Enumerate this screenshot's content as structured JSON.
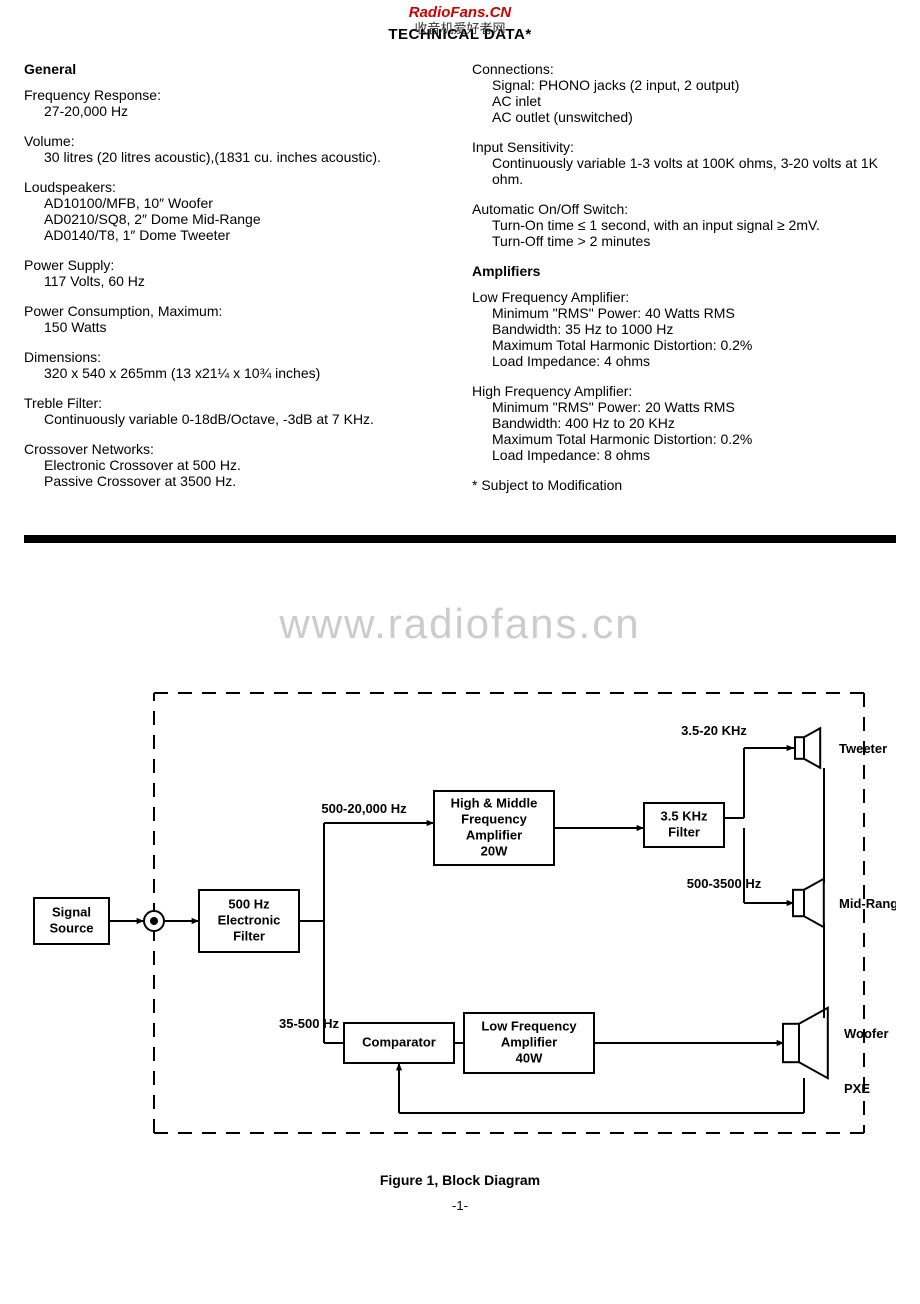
{
  "watermark_top": "RadioFans.CN",
  "title": "TECHNICAL DATA*",
  "title_overlay": "收音机爱好者网",
  "left": {
    "heading": "General",
    "specs": [
      {
        "label": "Frequency Response:",
        "lines": [
          "27-20,000 Hz"
        ]
      },
      {
        "label": "Volume:",
        "lines": [
          "30 litres (20 litres acoustic),(1831 cu. inches acoustic)."
        ]
      },
      {
        "label": "Loudspeakers:",
        "lines": [
          "AD10100/MFB, 10″ Woofer",
          "AD0210/SQ8, 2″ Dome Mid-Range",
          "AD0140/T8, 1″ Dome Tweeter"
        ]
      },
      {
        "label": "Power Supply:",
        "lines": [
          "117 Volts, 60 Hz"
        ]
      },
      {
        "label": "Power Consumption, Maximum:",
        "lines": [
          "150 Watts"
        ]
      },
      {
        "label": "Dimensions:",
        "lines": [
          "320 x 540 x 265mm (13 x21¼ x 10¾ inches)"
        ]
      },
      {
        "label": "Treble Filter:",
        "lines": [
          "Continuously variable 0-18dB/Octave, -3dB at 7 KHz."
        ]
      },
      {
        "label": "Crossover Networks:",
        "lines": [
          "Electronic Crossover at 500 Hz.",
          "Passive Crossover at 3500 Hz."
        ]
      }
    ]
  },
  "right": {
    "specs1": [
      {
        "label": "Connections:",
        "lines": [
          "Signal: PHONO jacks (2 input, 2 output)",
          "AC inlet",
          "AC outlet (unswitched)"
        ]
      },
      {
        "label": "Input Sensitivity:",
        "lines": [
          "Continuously variable 1-3 volts at 100K ohms, 3-20 volts at 1K ohm."
        ]
      },
      {
        "label": "Automatic On/Off Switch:",
        "lines": [
          "Turn-On time ≤ 1 second, with an input signal ≥ 2mV.",
          "Turn-Off time > 2 minutes"
        ]
      }
    ],
    "heading": "Amplifiers",
    "specs2": [
      {
        "label": "Low Frequency Amplifier:",
        "lines": [
          "Minimum \"RMS\" Power: 40 Watts RMS",
          "Bandwidth: 35 Hz to 1000 Hz",
          "Maximum Total Harmonic Distortion: 0.2%",
          "Load Impedance: 4 ohms"
        ]
      },
      {
        "label": "High Frequency Amplifier:",
        "lines": [
          "Minimum \"RMS\" Power: 20 Watts RMS",
          "Bandwidth: 400 Hz to 20 KHz",
          "Maximum Total Harmonic Distortion: 0.2%",
          "Load Impedance: 8 ohms"
        ]
      }
    ],
    "note": "* Subject to Modification"
  },
  "watermark_mid": "www.radiofans.cn",
  "diagram": {
    "caption": "Figure 1, Block Diagram",
    "page_num": "-1-",
    "boxes": {
      "signal_source": [
        "Signal",
        "Source"
      ],
      "filter_500": [
        "500 Hz",
        "Electronic",
        "Filter"
      ],
      "hm_amp": [
        "High & Middle",
        "Frequency",
        "Amplifier",
        "20W"
      ],
      "filter_35": [
        "3.5 KHz",
        "Filter"
      ],
      "comparator": [
        "Comparator"
      ],
      "lf_amp": [
        "Low Frequency",
        "Amplifier",
        "40W"
      ]
    },
    "labels": {
      "l_500_20000": "500-20,000 Hz",
      "l_35_20": "3.5-20 KHz",
      "l_500_3500": "500-3500 Hz",
      "l_35_500": "35-500 Hz",
      "tweeter": "Tweeter",
      "midrange": "Mid-Range",
      "woofer": "Woofer",
      "pxe": "PXE"
    },
    "colors": {
      "stroke": "#000000",
      "fill": "#ffffff",
      "text": "#000000"
    }
  }
}
